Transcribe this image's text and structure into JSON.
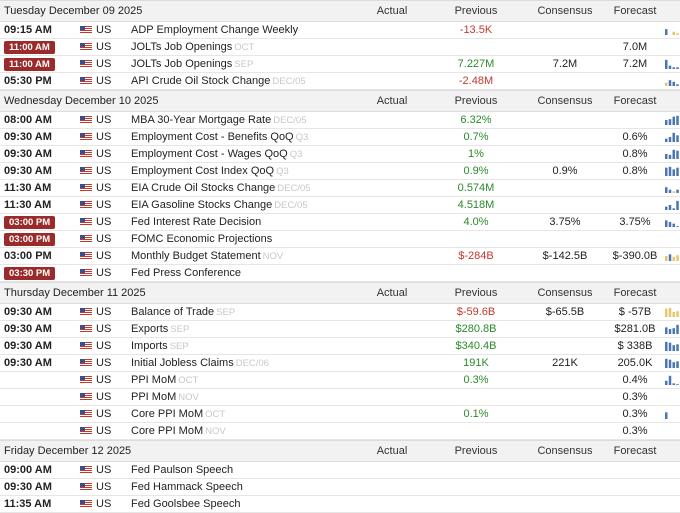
{
  "columns": {
    "actual": "Actual",
    "previous": "Previous",
    "consensus": "Consensus",
    "forecast": "Forecast"
  },
  "colors": {
    "badge": "#9b2a2a",
    "positive": "#2a8a2a",
    "negative": "#c0392b",
    "spark_blue": "#4a77b4",
    "spark_yellow": "#e8c66a"
  },
  "days": [
    {
      "title": "Tuesday December 09 2025",
      "events": [
        {
          "time": "09:15 AM",
          "badge": false,
          "country": "US",
          "event": "ADP Employment Change Weekly",
          "ref": "",
          "actual": "",
          "previous": "-13.5K",
          "previous_trend": "neg",
          "consensus": "",
          "forecast": "",
          "spark": [
            {
              "h": 0.6,
              "c": "blue"
            },
            {
              "h": 0,
              "c": "blue"
            },
            {
              "h": 0.3,
              "c": "yellow"
            },
            {
              "h": 0.2,
              "c": "yellow"
            }
          ]
        },
        {
          "time": "11:00 AM",
          "badge": true,
          "country": "US",
          "event": "JOLTs Job Openings",
          "ref": "OCT",
          "actual": "",
          "previous": "",
          "previous_trend": "",
          "consensus": "",
          "forecast": "7.0M",
          "spark": []
        },
        {
          "time": "11:00 AM",
          "badge": true,
          "country": "US",
          "event": "JOLTs Job Openings",
          "ref": "SEP",
          "actual": "",
          "previous": "7.227M",
          "previous_trend": "pos",
          "consensus": "7.2M",
          "forecast": "7.2M",
          "spark": [
            {
              "h": 0.9,
              "c": "blue"
            },
            {
              "h": 0.3,
              "c": "blue"
            },
            {
              "h": 0.2,
              "c": "blue"
            },
            {
              "h": 0.2,
              "c": "blue"
            }
          ]
        },
        {
          "time": "05:30 PM",
          "badge": false,
          "country": "US",
          "event": "API Crude Oil Stock Change",
          "ref": "DEC/05",
          "actual": "",
          "previous": "-2.48M",
          "previous_trend": "neg",
          "consensus": "",
          "forecast": "",
          "spark": [
            {
              "h": 0.3,
              "c": "yellow"
            },
            {
              "h": 0.6,
              "c": "blue"
            },
            {
              "h": 0.4,
              "c": "blue"
            },
            {
              "h": 0.2,
              "c": "blue"
            }
          ]
        }
      ]
    },
    {
      "title": "Wednesday December 10 2025",
      "events": [
        {
          "time": "08:00 AM",
          "badge": false,
          "country": "US",
          "event": "MBA 30-Year Mortgage Rate",
          "ref": "DEC/05",
          "actual": "",
          "previous": "6.32%",
          "previous_trend": "pos",
          "consensus": "",
          "forecast": "",
          "spark": [
            {
              "h": 0.5,
              "c": "blue"
            },
            {
              "h": 0.6,
              "c": "blue"
            },
            {
              "h": 0.8,
              "c": "blue"
            },
            {
              "h": 0.9,
              "c": "blue"
            }
          ]
        },
        {
          "time": "09:30 AM",
          "badge": false,
          "country": "US",
          "event": "Employment Cost - Benefits QoQ",
          "ref": "Q3",
          "actual": "",
          "previous": "0.7%",
          "previous_trend": "pos",
          "consensus": "",
          "forecast": "0.6%",
          "spark": [
            {
              "h": 0.3,
              "c": "blue"
            },
            {
              "h": 0.5,
              "c": "blue"
            },
            {
              "h": 0.9,
              "c": "blue"
            },
            {
              "h": 0.7,
              "c": "blue"
            }
          ]
        },
        {
          "time": "09:30 AM",
          "badge": false,
          "country": "US",
          "event": "Employment Cost - Wages QoQ",
          "ref": "Q3",
          "actual": "",
          "previous": "1%",
          "previous_trend": "pos",
          "consensus": "",
          "forecast": "0.8%",
          "spark": [
            {
              "h": 0.5,
              "c": "blue"
            },
            {
              "h": 0.4,
              "c": "blue"
            },
            {
              "h": 0.9,
              "c": "blue"
            },
            {
              "h": 0.8,
              "c": "blue"
            }
          ]
        },
        {
          "time": "09:30 AM",
          "badge": false,
          "country": "US",
          "event": "Employment Cost Index QoQ",
          "ref": "Q3",
          "actual": "",
          "previous": "0.9%",
          "previous_trend": "pos",
          "consensus": "0.9%",
          "forecast": "0.8%",
          "spark": [
            {
              "h": 0.8,
              "c": "blue"
            },
            {
              "h": 0.9,
              "c": "blue"
            },
            {
              "h": 0.7,
              "c": "blue"
            },
            {
              "h": 0.8,
              "c": "blue"
            }
          ]
        },
        {
          "time": "11:30 AM",
          "badge": false,
          "country": "US",
          "event": "EIA Crude Oil Stocks Change",
          "ref": "DEC/05",
          "actual": "",
          "previous": "0.574M",
          "previous_trend": "pos",
          "consensus": "",
          "forecast": "",
          "spark": [
            {
              "h": 0.6,
              "c": "blue"
            },
            {
              "h": 0.3,
              "c": "blue"
            },
            {
              "h": 0.2,
              "c": "yellow"
            },
            {
              "h": 0.3,
              "c": "blue"
            }
          ]
        },
        {
          "time": "11:30 AM",
          "badge": false,
          "country": "US",
          "event": "EIA Gasoline Stocks Change",
          "ref": "DEC/05",
          "actual": "",
          "previous": "4.518M",
          "previous_trend": "pos",
          "consensus": "",
          "forecast": "",
          "spark": [
            {
              "h": 0.3,
              "c": "blue"
            },
            {
              "h": 0.5,
              "c": "blue"
            },
            {
              "h": 0.2,
              "c": "blue"
            },
            {
              "h": 0.9,
              "c": "blue"
            }
          ]
        },
        {
          "time": "03:00 PM",
          "badge": true,
          "country": "US",
          "event": "Fed Interest Rate Decision",
          "ref": "",
          "actual": "",
          "previous": "4.0%",
          "previous_trend": "pos",
          "consensus": "3.75%",
          "forecast": "3.75%",
          "spark": [
            {
              "h": 0.7,
              "c": "blue"
            },
            {
              "h": 0.5,
              "c": "blue"
            },
            {
              "h": 0.3,
              "c": "blue"
            },
            {
              "h": 0.1,
              "c": "blue"
            }
          ]
        },
        {
          "time": "03:00 PM",
          "badge": true,
          "country": "US",
          "event": "FOMC Economic Projections",
          "ref": "",
          "actual": "",
          "previous": "",
          "previous_trend": "",
          "consensus": "",
          "forecast": "",
          "spark": []
        },
        {
          "time": "03:00 PM",
          "badge": false,
          "country": "US",
          "event": "Monthly Budget Statement",
          "ref": "NOV",
          "actual": "",
          "previous": "$-284B",
          "previous_trend": "neg",
          "consensus": "$-142.5B",
          "forecast": "$-390.0B",
          "spark": [
            {
              "h": 0.5,
              "c": "yellow"
            },
            {
              "h": 0.7,
              "c": "blue"
            },
            {
              "h": 0.4,
              "c": "yellow"
            },
            {
              "h": 0.6,
              "c": "yellow"
            }
          ]
        },
        {
          "time": "03:30 PM",
          "badge": true,
          "country": "US",
          "event": "Fed Press Conference",
          "ref": "",
          "actual": "",
          "previous": "",
          "previous_trend": "",
          "consensus": "",
          "forecast": "",
          "spark": []
        }
      ]
    },
    {
      "title": "Thursday December 11 2025",
      "events": [
        {
          "time": "09:30 AM",
          "badge": false,
          "country": "US",
          "event": "Balance of Trade",
          "ref": "SEP",
          "actual": "",
          "previous": "$-59.6B",
          "previous_trend": "neg",
          "consensus": "$-65.5B",
          "forecast": "$ -57B",
          "spark": [
            {
              "h": 0.8,
              "c": "yellow"
            },
            {
              "h": 0.9,
              "c": "yellow"
            },
            {
              "h": 0.5,
              "c": "yellow"
            },
            {
              "h": 0.6,
              "c": "yellow"
            }
          ]
        },
        {
          "time": "09:30 AM",
          "badge": false,
          "country": "US",
          "event": "Exports",
          "ref": "SEP",
          "actual": "",
          "previous": "$280.8B",
          "previous_trend": "pos",
          "consensus": "",
          "forecast": "$281.0B",
          "spark": [
            {
              "h": 0.7,
              "c": "blue"
            },
            {
              "h": 0.5,
              "c": "blue"
            },
            {
              "h": 0.6,
              "c": "blue"
            },
            {
              "h": 0.9,
              "c": "blue"
            }
          ]
        },
        {
          "time": "09:30 AM",
          "badge": false,
          "country": "US",
          "event": "Imports",
          "ref": "SEP",
          "actual": "",
          "previous": "$340.4B",
          "previous_trend": "pos",
          "consensus": "",
          "forecast": "$ 338B",
          "spark": [
            {
              "h": 0.9,
              "c": "blue"
            },
            {
              "h": 0.8,
              "c": "blue"
            },
            {
              "h": 0.6,
              "c": "blue"
            },
            {
              "h": 0.7,
              "c": "blue"
            }
          ]
        },
        {
          "time": "09:30 AM",
          "badge": false,
          "country": "US",
          "event": "Initial Jobless Claims",
          "ref": "DEC/06",
          "actual": "",
          "previous": "191K",
          "previous_trend": "pos",
          "consensus": "221K",
          "forecast": "205.0K",
          "spark": [
            {
              "h": 0.9,
              "c": "blue"
            },
            {
              "h": 0.8,
              "c": "blue"
            },
            {
              "h": 0.6,
              "c": "blue"
            },
            {
              "h": 0.7,
              "c": "blue"
            }
          ]
        },
        {
          "time": "",
          "badge": false,
          "country": "US",
          "event": "PPI MoM",
          "ref": "OCT",
          "actual": "",
          "previous": "0.3%",
          "previous_trend": "pos",
          "consensus": "",
          "forecast": "0.4%",
          "spark": [
            {
              "h": 0.4,
              "c": "blue"
            },
            {
              "h": 0.9,
              "c": "blue"
            },
            {
              "h": 0.2,
              "c": "blue"
            },
            {
              "h": 0.1,
              "c": "blue"
            }
          ]
        },
        {
          "time": "",
          "badge": false,
          "country": "US",
          "event": "PPI MoM",
          "ref": "NOV",
          "actual": "",
          "previous": "",
          "previous_trend": "",
          "consensus": "",
          "forecast": "0.3%",
          "spark": []
        },
        {
          "time": "",
          "badge": false,
          "country": "US",
          "event": "Core PPI MoM",
          "ref": "OCT",
          "actual": "",
          "previous": "0.1%",
          "previous_trend": "pos",
          "consensus": "",
          "forecast": "0.3%",
          "spark": [
            {
              "h": 0.7,
              "c": "blue"
            },
            {
              "h": 0,
              "c": "blue"
            },
            {
              "h": 0,
              "c": "blue"
            },
            {
              "h": 0,
              "c": "blue"
            }
          ]
        },
        {
          "time": "",
          "badge": false,
          "country": "US",
          "event": "Core PPI MoM",
          "ref": "NOV",
          "actual": "",
          "previous": "",
          "previous_trend": "",
          "consensus": "",
          "forecast": "0.3%",
          "spark": []
        }
      ]
    },
    {
      "title": "Friday December 12 2025",
      "events": [
        {
          "time": "09:00 AM",
          "badge": false,
          "country": "US",
          "event": "Fed Paulson Speech",
          "ref": "",
          "actual": "",
          "previous": "",
          "previous_trend": "",
          "consensus": "",
          "forecast": "",
          "spark": []
        },
        {
          "time": "09:30 AM",
          "badge": false,
          "country": "US",
          "event": "Fed Hammack Speech",
          "ref": "",
          "actual": "",
          "previous": "",
          "previous_trend": "",
          "consensus": "",
          "forecast": "",
          "spark": []
        },
        {
          "time": "11:35 AM",
          "badge": false,
          "country": "US",
          "event": "Fed Goolsbee Speech",
          "ref": "",
          "actual": "",
          "previous": "",
          "previous_trend": "",
          "consensus": "",
          "forecast": "",
          "spark": []
        }
      ]
    }
  ]
}
